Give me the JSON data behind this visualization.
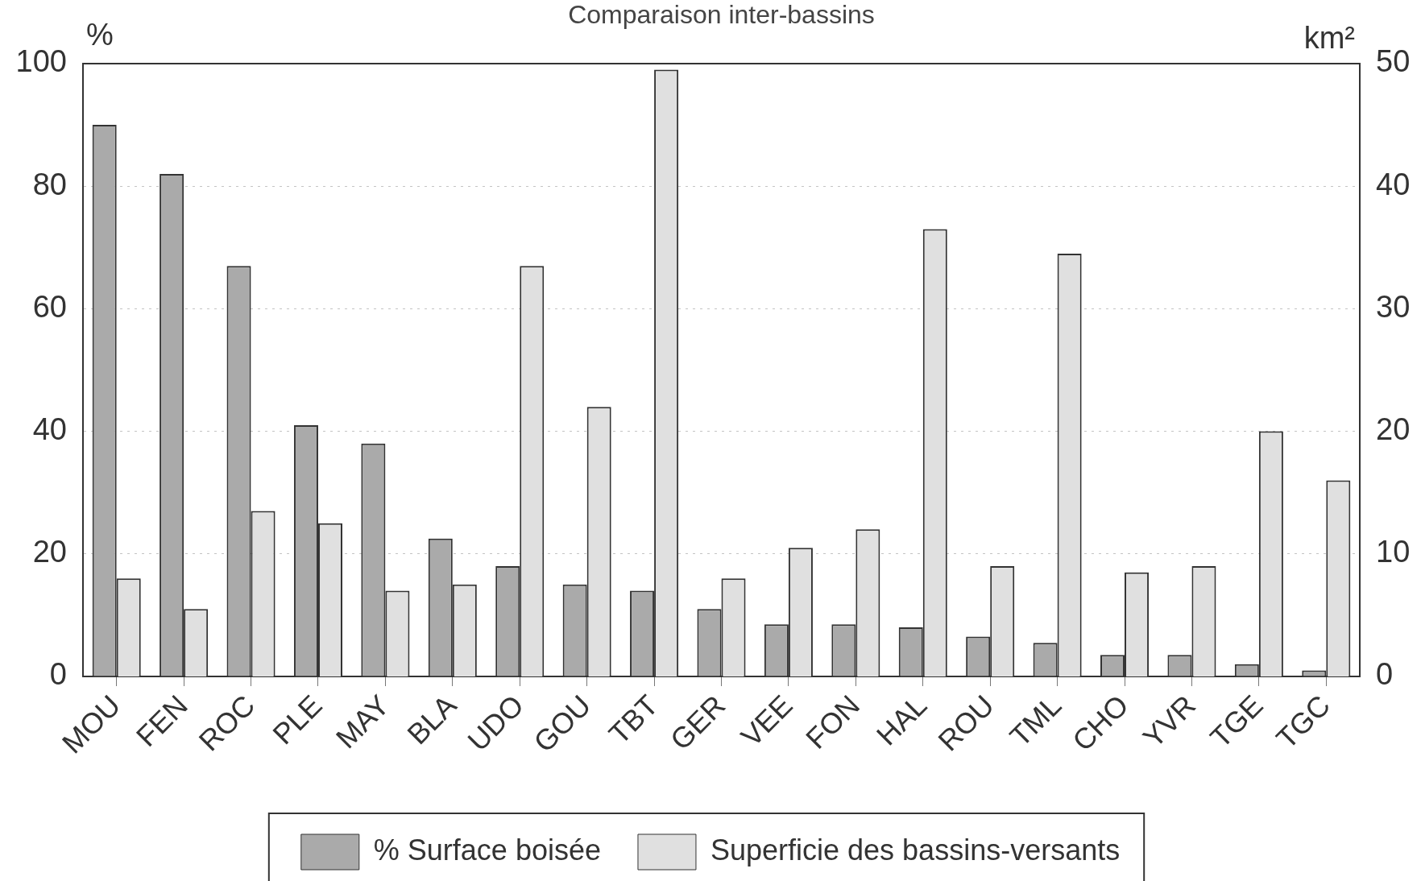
{
  "chart_data": {
    "type": "bar",
    "title": "Comparaison inter-bassins",
    "ylabel": "%",
    "y2label": "km²",
    "categories": [
      "MOU",
      "FEN",
      "ROC",
      "PLE",
      "MAY",
      "BLA",
      "UDO",
      "GOU",
      "TBT",
      "GER",
      "VEE",
      "FON",
      "HAL",
      "ROU",
      "TML",
      "CHO",
      "YVR",
      "TGE",
      "TGC"
    ],
    "series": [
      {
        "name": "% Surface boisée",
        "color": "#aaaaaa",
        "values": [
          90,
          82,
          67,
          41,
          38,
          22.5,
          18,
          15,
          14,
          11,
          8.5,
          8.5,
          8,
          6.5,
          5.5,
          3.5,
          3.5,
          2,
          1
        ]
      },
      {
        "name": "Superficie des bassins-versants",
        "color": "#e0e0e0",
        "axis": "y2",
        "values": [
          8,
          5.5,
          13.5,
          12.5,
          7,
          7.5,
          33.5,
          22,
          49.5,
          8,
          10.5,
          12,
          36.5,
          9,
          34.5,
          8.5,
          9,
          20,
          16
        ]
      }
    ],
    "ylim": [
      0,
      100
    ],
    "yticks": [
      0,
      20,
      40,
      60,
      80,
      100
    ],
    "y2lim": [
      0,
      50
    ],
    "y2ticks": [
      0,
      10,
      20,
      30,
      40,
      50
    ],
    "grid": "y",
    "legend": "bottom"
  }
}
